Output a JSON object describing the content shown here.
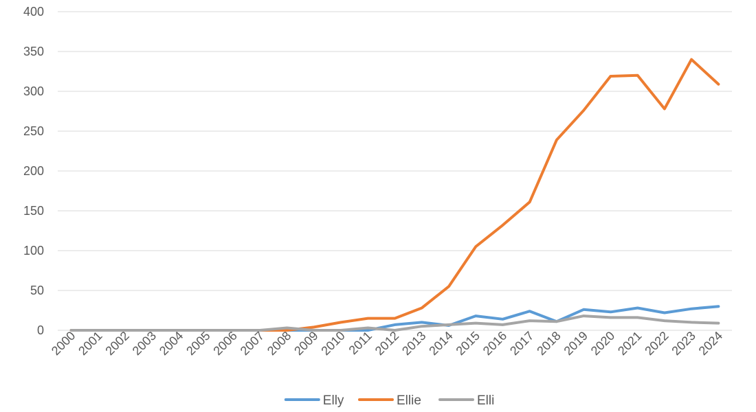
{
  "chart_data": {
    "type": "line",
    "title": "",
    "xlabel": "",
    "ylabel": "",
    "ylim": [
      0,
      400
    ],
    "yticks": [
      0,
      50,
      100,
      150,
      200,
      250,
      300,
      350,
      400
    ],
    "grid": true,
    "legend_position": "bottom",
    "categories": [
      "2000",
      "2001",
      "2002",
      "2003",
      "2004",
      "2005",
      "2006",
      "2007",
      "2008",
      "2009",
      "2010",
      "2011",
      "2012",
      "2013",
      "2014",
      "2015",
      "2016",
      "2017",
      "2018",
      "2019",
      "2020",
      "2021",
      "2022",
      "2023",
      "2024"
    ],
    "series": [
      {
        "name": "Elly",
        "color": "#5B9BD5",
        "values": [
          0,
          0,
          0,
          0,
          0,
          0,
          0,
          0,
          0,
          0,
          0,
          0,
          7,
          10,
          6,
          18,
          14,
          24,
          11,
          26,
          23,
          28,
          22,
          27,
          30
        ]
      },
      {
        "name": "Ellie",
        "color": "#ED7D31",
        "values": [
          0,
          0,
          0,
          0,
          0,
          0,
          0,
          0,
          0,
          4,
          10,
          15,
          15,
          28,
          55,
          105,
          132,
          161,
          239,
          276,
          319,
          320,
          278,
          340,
          309
        ]
      },
      {
        "name": "Elli",
        "color": "#A5A5A5",
        "values": [
          0,
          0,
          0,
          0,
          0,
          0,
          0,
          0,
          3,
          0,
          0,
          3,
          0,
          5,
          7,
          9,
          7,
          12,
          11,
          18,
          16,
          16,
          12,
          10,
          9
        ]
      }
    ]
  }
}
